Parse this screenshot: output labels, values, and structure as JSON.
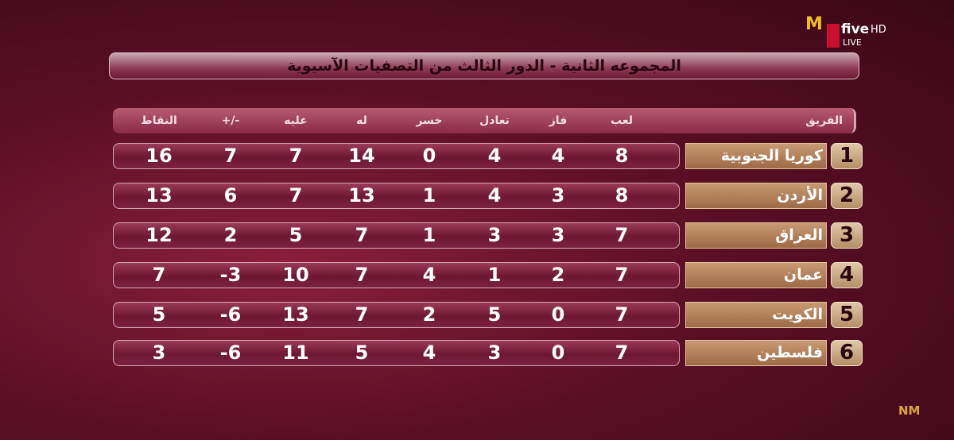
{
  "logo": {
    "brand": "M",
    "channel": "five",
    "quality": "HD",
    "status": "LIVE",
    "corner": "NM"
  },
  "title": "المجموعه الثانية - الدور الثالث من التصفيات الآسيوية",
  "table": {
    "columns": [
      "الفريق",
      "لعب",
      "فاز",
      "تعادل",
      "خسر",
      "له",
      "عليه",
      "+/-",
      "النقاط"
    ],
    "rows": [
      [
        1,
        "كوريا الجنوبية",
        8,
        4,
        4,
        0,
        14,
        7,
        7,
        16
      ],
      [
        2,
        "الأردن",
        8,
        3,
        4,
        1,
        13,
        7,
        6,
        13
      ],
      [
        3,
        "العراق",
        7,
        3,
        3,
        1,
        7,
        5,
        2,
        12
      ],
      [
        4,
        "عمان",
        7,
        2,
        1,
        4,
        7,
        10,
        -3,
        7
      ],
      [
        5,
        "الكويت",
        7,
        0,
        5,
        2,
        7,
        13,
        -6,
        5
      ],
      [
        6,
        "فلسطين",
        7,
        0,
        3,
        4,
        5,
        11,
        -6,
        3
      ]
    ]
  }
}
